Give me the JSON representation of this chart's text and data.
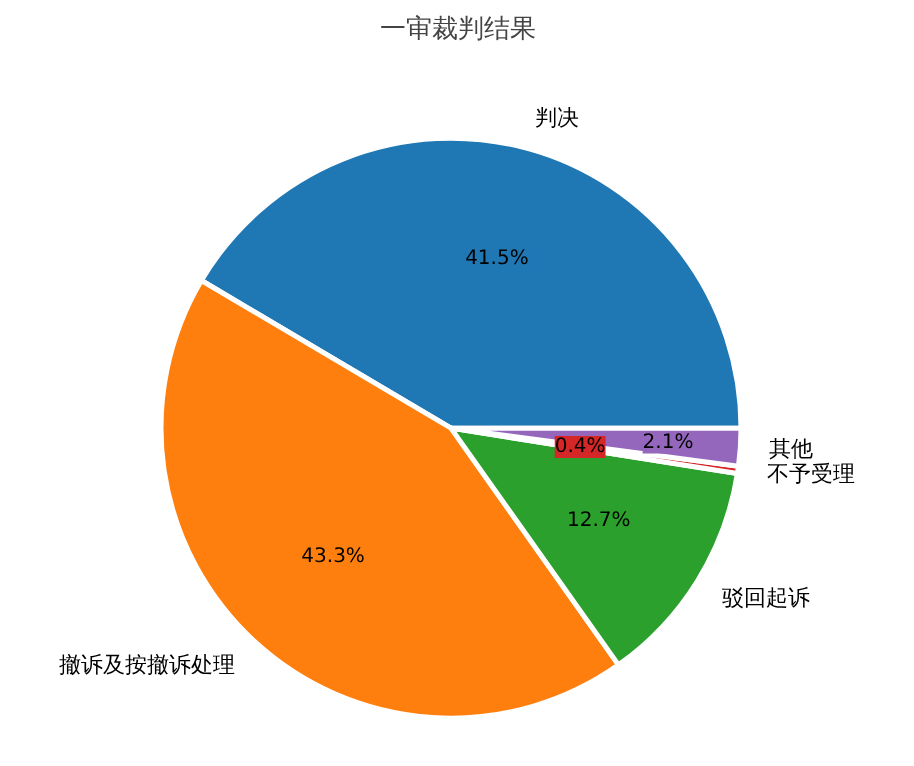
{
  "chart_data": {
    "type": "pie",
    "title": "一审裁判结果",
    "categories": [
      "判决",
      "撤诉及按撤诉处理",
      "驳回起诉",
      "不予受理",
      "其他"
    ],
    "values": [
      41.5,
      43.3,
      12.7,
      0.4,
      2.1
    ],
    "colors": [
      "#1f77b4",
      "#ff7f0e",
      "#2ca02c",
      "#d62728",
      "#9467bd"
    ],
    "value_labels": [
      "41.5%",
      "43.3%",
      "12.7%",
      "0.4%",
      "2.1%"
    ]
  }
}
